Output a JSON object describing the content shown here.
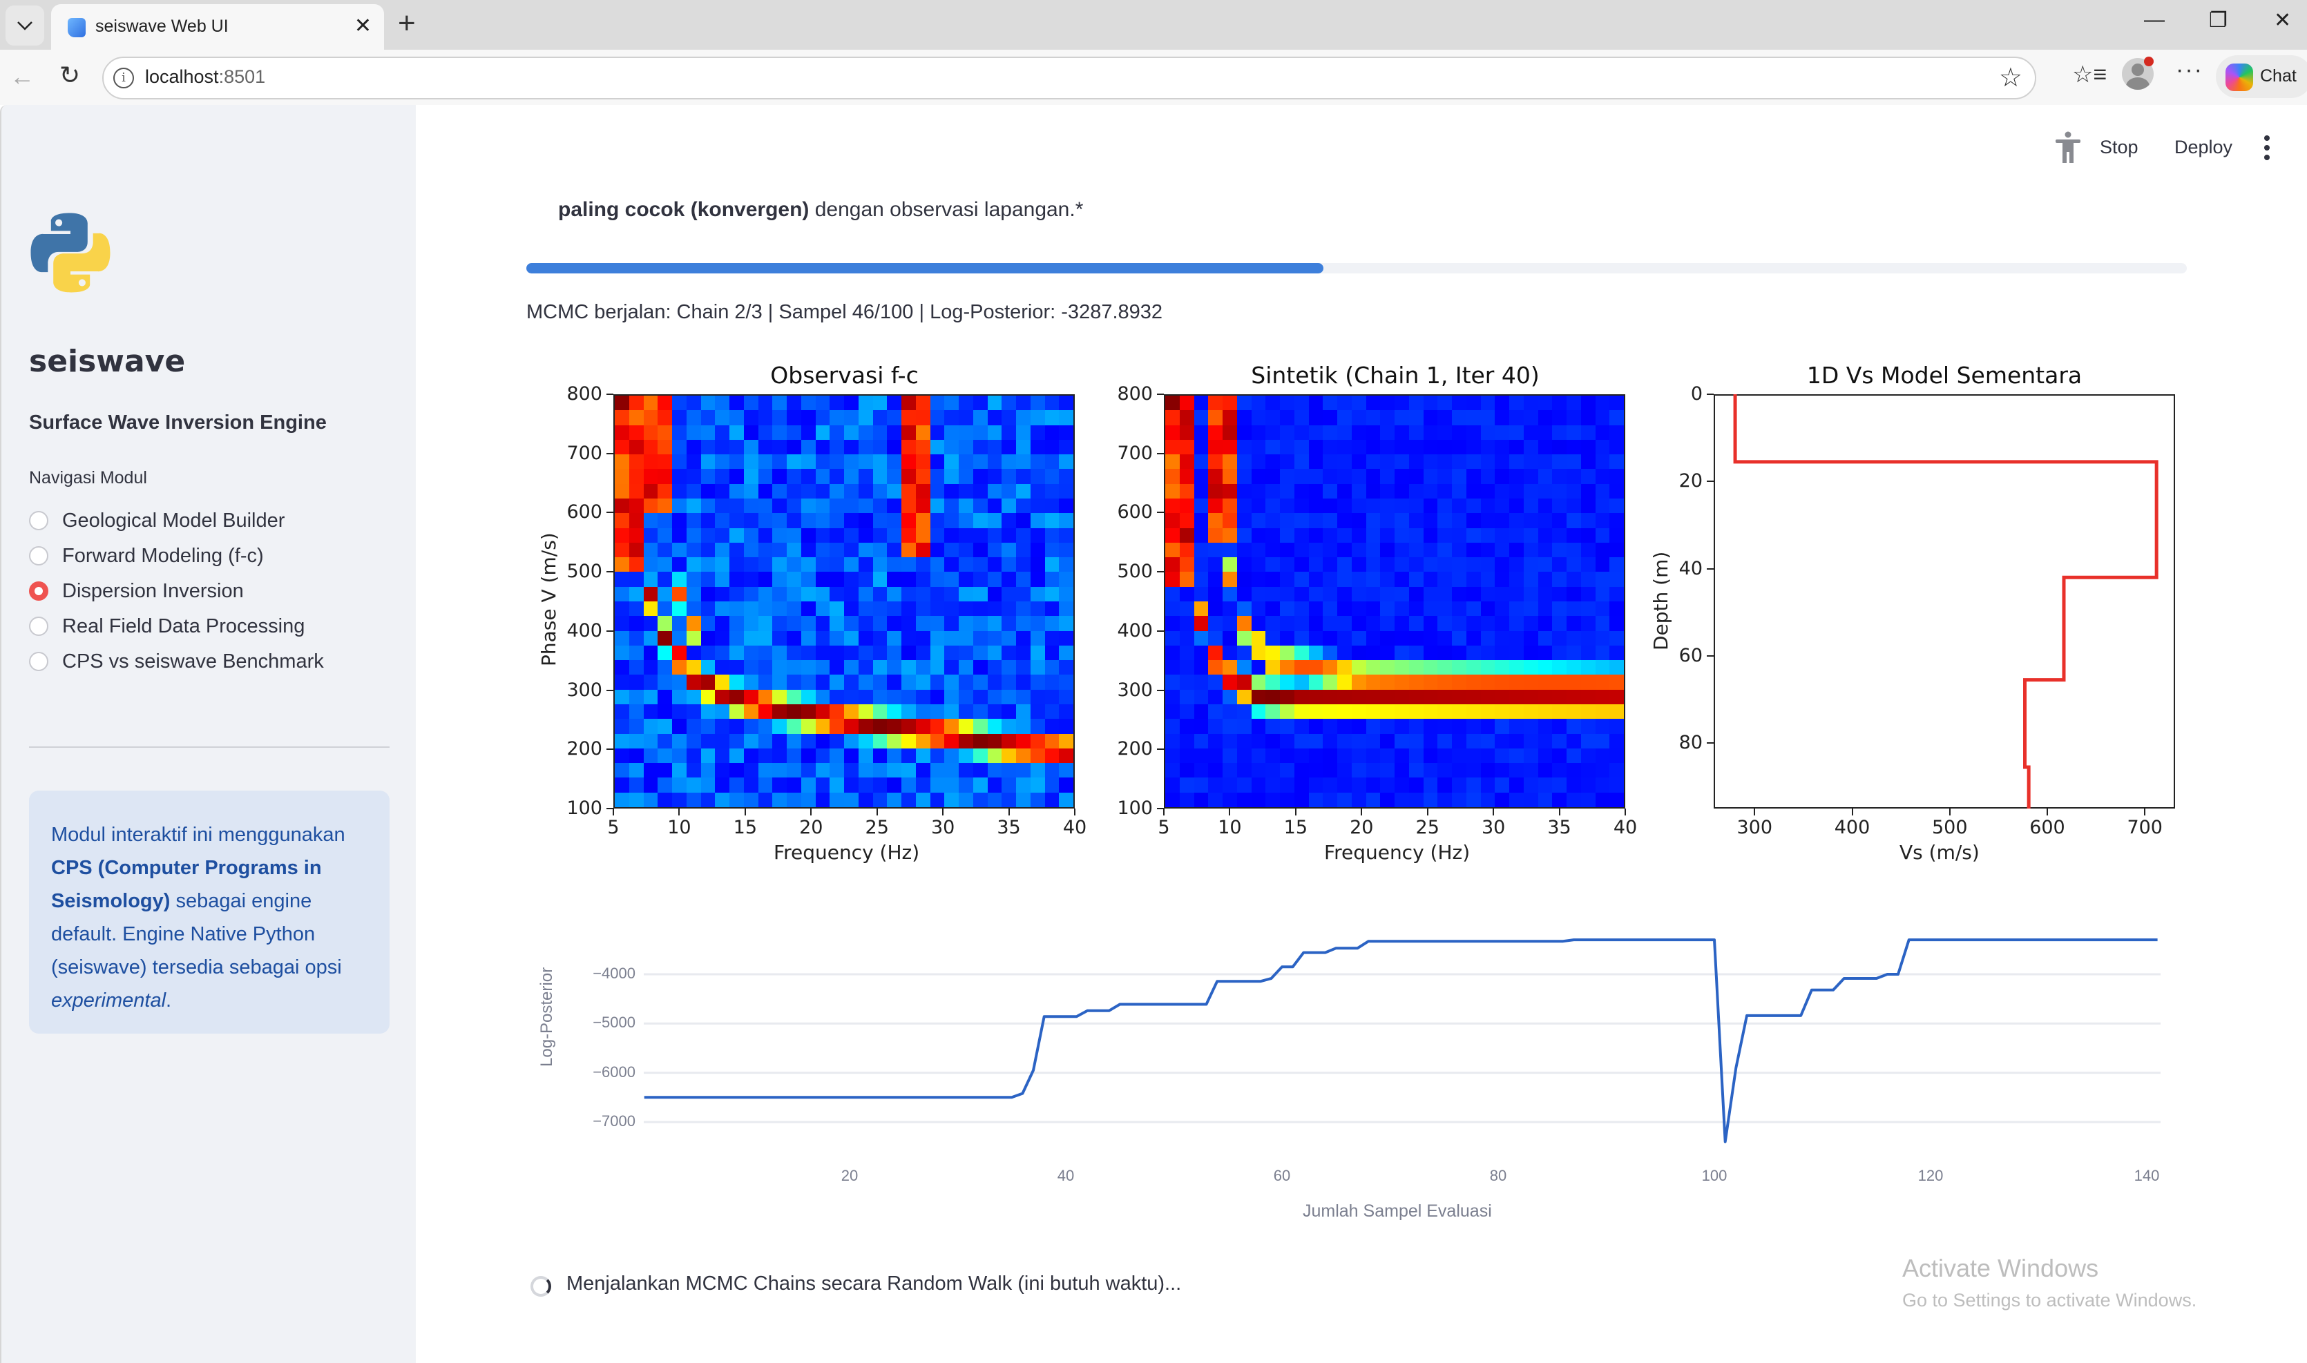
{
  "browser": {
    "tab_title": "seiswave Web UI",
    "tab_close": "✕",
    "new_tab": "+",
    "url_host": "localhost",
    "url_port": ":8501",
    "chat_label": "Chat",
    "window_controls": {
      "minimize": "—",
      "restore": "❐",
      "close": "✕"
    },
    "back": "←",
    "reload": "↻",
    "info": "i",
    "star": "☆",
    "favorites": "☆≡",
    "more": "···"
  },
  "sidebar": {
    "title": "seiswave",
    "subtitle": "Surface Wave Inversion Engine",
    "nav_label": "Navigasi Modul",
    "items": [
      {
        "label": "Geological Model Builder",
        "selected": false
      },
      {
        "label": "Forward Modeling (f-c)",
        "selected": false
      },
      {
        "label": "Dispersion Inversion",
        "selected": true
      },
      {
        "label": "Real Field Data Processing",
        "selected": false
      },
      {
        "label": "CPS vs seiswave Benchmark",
        "selected": false
      }
    ],
    "info": {
      "part1": "Modul interaktif ini menggunakan ",
      "bold": "CPS (Computer Programs in Seismology)",
      "part2": " sebagai engine default. Engine Native Python (seiswave) tersedia sebagai opsi ",
      "italic": "experimental",
      "part3": "."
    }
  },
  "header": {
    "stop_label": "Stop",
    "deploy_label": "Deploy"
  },
  "main": {
    "caption_bold": "paling cocok (konvergen)",
    "caption_rest": " dengan observasi lapangan.*",
    "progress_percent": 48,
    "progress_color": "#3d7fdb",
    "status": "MCMC berjalan: Chain 2/3 | Sampel 46/100 | Log-Posterior: -3287.8932",
    "spinner_text": "Menjalankan MCMC Chains secara Random Walk (ini butuh waktu)..."
  },
  "watermark": {
    "title": "Activate Windows",
    "subtitle": "Go to Settings to activate Windows."
  },
  "chart_data": [
    {
      "type": "heatmap",
      "title": "Observasi f-c",
      "xlabel": "Frequency (Hz)",
      "ylabel": "Phase V (m/s)",
      "xlim": [
        5,
        40
      ],
      "ylim": [
        100,
        800
      ],
      "xticks": [
        5,
        10,
        15,
        20,
        25,
        30,
        35,
        40
      ],
      "yticks": [
        100,
        200,
        300,
        400,
        500,
        600,
        700,
        800
      ],
      "colormap": "jet",
      "grid": [
        32,
        28
      ],
      "ridges": [
        {
          "desc": "fundamental mode",
          "points": [
            [
              5.5,
              800
            ],
            [
              7,
              500
            ],
            [
              9,
              380
            ],
            [
              11,
              320
            ],
            [
              14,
              285
            ],
            [
              18,
              265
            ],
            [
              22,
              250
            ],
            [
              26,
              235
            ],
            [
              30,
              225
            ],
            [
              35,
              205
            ],
            [
              40,
              195
            ]
          ]
        },
        {
          "desc": "higher mode",
          "points": [
            [
              8,
              800
            ],
            [
              9,
              600
            ],
            [
              10,
              450
            ],
            [
              12,
              360
            ]
          ]
        },
        {
          "desc": "noisy energy band near 28 Hz",
          "points": [
            [
              28,
              620
            ],
            [
              29,
              520
            ],
            [
              29.5,
              450
            ]
          ]
        }
      ],
      "noise": 0.35,
      "seed": 7
    },
    {
      "type": "heatmap",
      "title": "Sintetik (Chain 1, Iter 40)",
      "xlabel": "Frequency (Hz)",
      "ylabel": "",
      "xlim": [
        5,
        40
      ],
      "ylim": [
        100,
        800
      ],
      "xticks": [
        5,
        10,
        15,
        20,
        25,
        30,
        35,
        40
      ],
      "yticks": [
        100,
        200,
        300,
        400,
        500,
        600,
        700,
        800
      ],
      "colormap": "jet",
      "grid": [
        32,
        28
      ],
      "ridges": [
        {
          "desc": "fundamental mode",
          "points": [
            [
              5.5,
              800
            ],
            [
              7,
              480
            ],
            [
              8.5,
              360
            ],
            [
              10,
              320
            ],
            [
              12,
              290
            ],
            [
              15,
              282
            ],
            [
              40,
              280
            ]
          ]
        },
        {
          "desc": "higher mode",
          "points": [
            [
              9,
              800
            ],
            [
              9.5,
              550
            ],
            [
              10.5,
              420
            ],
            [
              13,
              350
            ],
            [
              20,
              320
            ],
            [
              40,
              310
            ]
          ]
        }
      ],
      "noise": 0.12,
      "seed": 3
    },
    {
      "type": "line",
      "title": "1D Vs Model Sementara",
      "xlabel": "Vs (m/s)",
      "ylabel": "Depth (m)",
      "xlim": [
        258,
        731
      ],
      "ylim": [
        95,
        0
      ],
      "xticks": [
        300,
        400,
        500,
        600,
        700
      ],
      "yticks": [
        0,
        20,
        40,
        60,
        80
      ],
      "color": "#e8302a",
      "layers": [
        {
          "top": 0,
          "bottom": 15.5,
          "vs": 280
        },
        {
          "top": 15.5,
          "bottom": 42,
          "vs": 712
        },
        {
          "top": 42,
          "bottom": 65.5,
          "vs": 617
        },
        {
          "top": 65.5,
          "bottom": 85.5,
          "vs": 577
        },
        {
          "top": 85.5,
          "bottom": 95,
          "vs": 581
        }
      ]
    },
    {
      "type": "line",
      "title": "",
      "xlabel": "Jumlah Sampel Evaluasi",
      "ylabel": "Log-Posterior",
      "xlim": [
        1,
        141
      ],
      "ylim": [
        -7800,
        -3100
      ],
      "xticks": [
        20,
        40,
        60,
        80,
        100,
        120,
        140
      ],
      "yticks": [
        -4000,
        -5000,
        -6000,
        -7000
      ],
      "ytick_labels": [
        "−4000",
        "−5000",
        "−6000",
        "−7000"
      ],
      "color": "#2b63c4",
      "x": [
        1,
        35,
        36,
        37,
        38,
        41,
        42,
        44,
        45,
        53,
        54,
        58,
        59,
        60,
        61,
        62,
        64,
        65,
        67,
        68,
        86,
        87,
        100,
        101,
        102,
        103,
        108,
        109,
        111,
        112,
        115,
        116,
        117,
        118,
        141
      ],
      "y": [
        -6500,
        -6500,
        -6420,
        -5950,
        -4860,
        -4860,
        -4740,
        -4740,
        -4610,
        -4610,
        -4145,
        -4145,
        -4085,
        -3850,
        -3850,
        -3560,
        -3560,
        -3470,
        -3470,
        -3330,
        -3330,
        -3300,
        -3300,
        -7400,
        -5900,
        -4840,
        -4840,
        -4318,
        -4318,
        -4084,
        -4084,
        -4000,
        -4000,
        -3300,
        -3300
      ]
    }
  ]
}
